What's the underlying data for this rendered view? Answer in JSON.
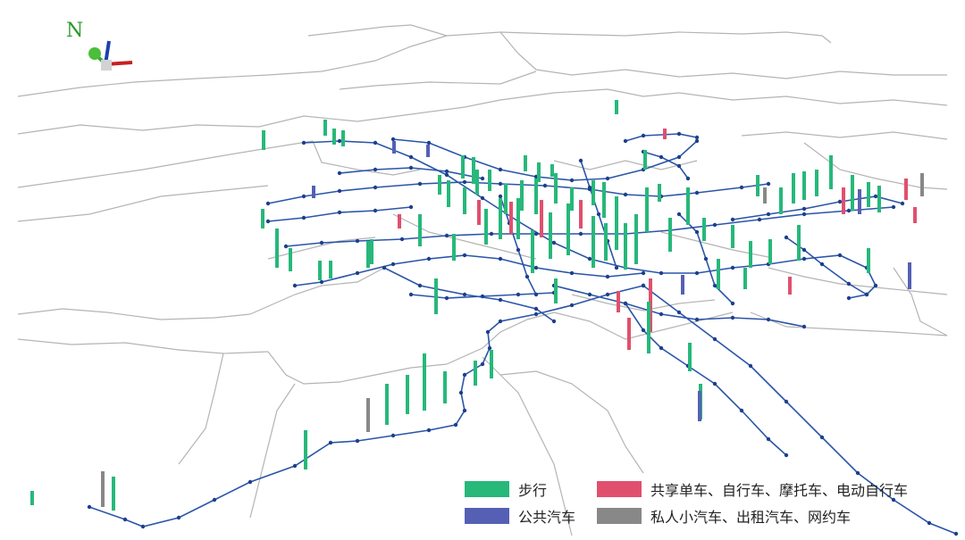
{
  "compass": {
    "label": "N"
  },
  "legend": {
    "items": [
      {
        "label": "步行",
        "color": "#27b87a"
      },
      {
        "label": "共享单车、自行车、摩托车、电动自行车",
        "color": "#e0506e"
      },
      {
        "label": "公共汽车",
        "color": "#5560b4"
      },
      {
        "label": "私人小汽车、出租汽车、网约车",
        "color": "#888888"
      }
    ]
  },
  "colors": {
    "district_boundary": "#b4b4b4",
    "metro_line": "#2a55a8",
    "metro_station": "#1e3f8c"
  }
}
